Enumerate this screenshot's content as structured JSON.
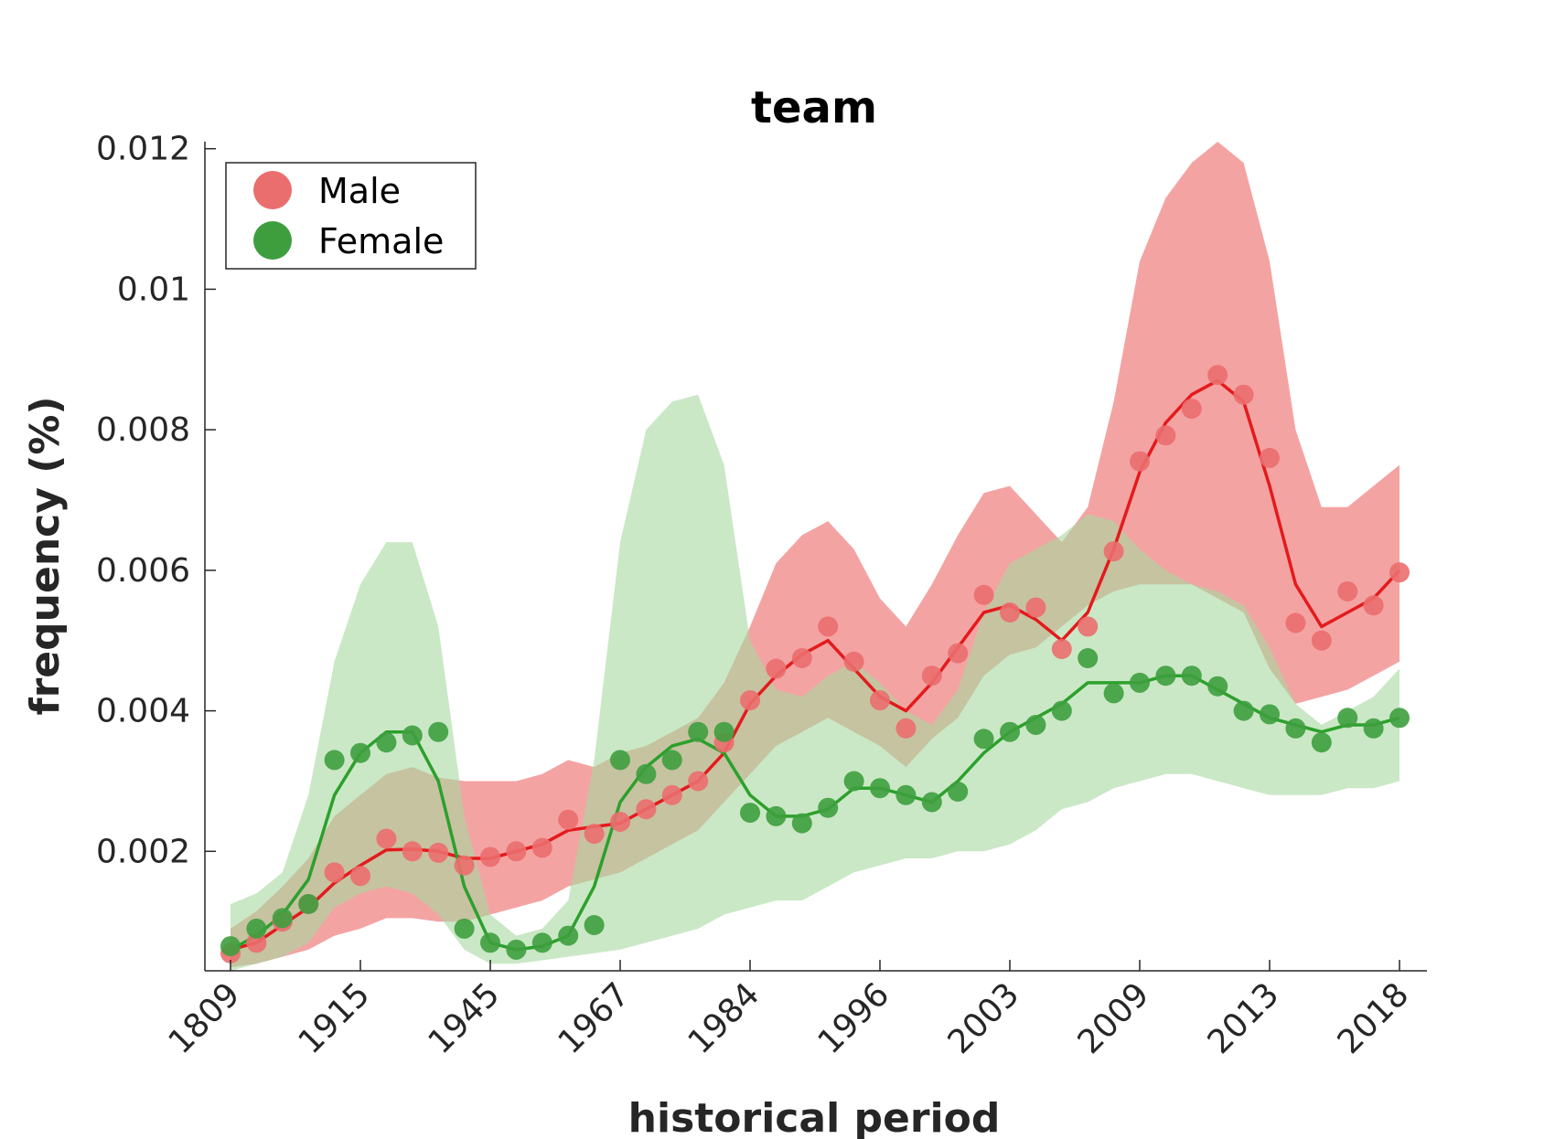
{
  "chart_data": {
    "type": "line",
    "title": "team",
    "xlabel": "historical period",
    "ylabel": "frequency (%)",
    "x_tick_labels": [
      "1809",
      "1915",
      "1945",
      "1967",
      "1984",
      "1996",
      "2003",
      "2009",
      "2013",
      "2018"
    ],
    "y_ticks": [
      0.002,
      0.004,
      0.006,
      0.008,
      0.01,
      0.012
    ],
    "y_tick_labels": [
      "0.002",
      "0.004",
      "0.006",
      "0.008",
      "0.01",
      "0.012"
    ],
    "ylim": [
      0.0003,
      0.0121
    ],
    "grid": false,
    "legend_position": "top-left",
    "series": [
      {
        "name": "Male",
        "color": "#e41a1c",
        "marker_color": "#eb6e6e",
        "band_color": "#f4a3a3",
        "points": [
          0.00055,
          0.0007,
          0.001,
          0.00125,
          0.0017,
          0.00165,
          0.00218,
          0.002,
          0.00198,
          0.0018,
          0.00192,
          0.002,
          0.00205,
          0.00245,
          0.00225,
          0.00242,
          0.0026,
          0.0028,
          0.003,
          0.00355,
          0.00415,
          0.0046,
          0.00475,
          0.0052,
          0.0047,
          0.00415,
          0.00375,
          0.0045,
          0.00482,
          0.00565,
          0.0054,
          0.00547,
          0.00488,
          0.0052,
          0.00627,
          0.00755,
          0.00792,
          0.0083,
          0.00878,
          0.0085,
          0.0076,
          0.00525,
          0.005,
          0.0057,
          0.0055,
          0.00597
        ],
        "trend": [
          0.0006,
          0.0007,
          0.00095,
          0.0012,
          0.00155,
          0.0018,
          0.00202,
          0.00203,
          0.002,
          0.0019,
          0.0019,
          0.002,
          0.0021,
          0.0023,
          0.00235,
          0.0024,
          0.0026,
          0.0028,
          0.003,
          0.0034,
          0.0041,
          0.0045,
          0.0048,
          0.005,
          0.0046,
          0.0042,
          0.004,
          0.0044,
          0.0049,
          0.0054,
          0.0055,
          0.0053,
          0.005,
          0.0054,
          0.0063,
          0.0074,
          0.0081,
          0.0085,
          0.0087,
          0.0084,
          0.0072,
          0.0058,
          0.0052,
          0.0054,
          0.0056,
          0.006
        ],
        "band_lower": [
          0.00035,
          0.0004,
          0.0005,
          0.0006,
          0.0008,
          0.0009,
          0.00105,
          0.00105,
          0.001,
          0.001,
          0.0011,
          0.0012,
          0.0013,
          0.0015,
          0.0016,
          0.0017,
          0.0019,
          0.0021,
          0.0023,
          0.0027,
          0.0031,
          0.0035,
          0.0037,
          0.0039,
          0.0037,
          0.0035,
          0.0032,
          0.0036,
          0.0039,
          0.0045,
          0.0048,
          0.0049,
          0.0052,
          0.0055,
          0.0057,
          0.0058,
          0.0058,
          0.0058,
          0.0056,
          0.0054,
          0.0046,
          0.0041,
          0.0042,
          0.0043,
          0.0045,
          0.0047
        ],
        "band_upper": [
          0.0009,
          0.00115,
          0.0015,
          0.0019,
          0.0025,
          0.0028,
          0.0031,
          0.0032,
          0.00305,
          0.003,
          0.003,
          0.003,
          0.0031,
          0.0033,
          0.0032,
          0.0034,
          0.0035,
          0.0037,
          0.0039,
          0.0044,
          0.0052,
          0.0061,
          0.0065,
          0.0067,
          0.0063,
          0.0056,
          0.0052,
          0.0058,
          0.0065,
          0.0071,
          0.0072,
          0.0068,
          0.0064,
          0.0069,
          0.0084,
          0.0104,
          0.0113,
          0.0118,
          0.0121,
          0.0118,
          0.0104,
          0.008,
          0.0069,
          0.0069,
          0.0072,
          0.0075
        ]
      },
      {
        "name": "Female",
        "color": "#2ca02c",
        "marker_color": "#3e9e3e",
        "band_color": "#a6d8a0",
        "points": [
          0.00065,
          0.0009,
          0.00105,
          0.00125,
          0.0033,
          0.0034,
          0.00355,
          0.00365,
          0.0037,
          0.0009,
          0.0007,
          0.0006,
          0.0007,
          0.0008,
          0.00095,
          0.0033,
          0.0031,
          0.0033,
          0.0037,
          0.0037,
          0.00255,
          0.0025,
          0.0024,
          0.00262,
          0.003,
          0.0029,
          0.0028,
          0.0027,
          0.00285,
          0.0036,
          0.0037,
          0.0038,
          0.004,
          0.00475,
          0.00425,
          0.0044,
          0.0045,
          0.0045,
          0.00435,
          0.004,
          0.00395,
          0.00375,
          0.00355,
          0.0039,
          0.00375,
          0.0039
        ],
        "trend": [
          0.0006,
          0.0008,
          0.0011,
          0.0016,
          0.0028,
          0.0034,
          0.0037,
          0.0037,
          0.003,
          0.0015,
          0.0007,
          0.0006,
          0.00065,
          0.0008,
          0.0015,
          0.0027,
          0.0032,
          0.0035,
          0.0036,
          0.0034,
          0.0028,
          0.0025,
          0.0025,
          0.0026,
          0.0029,
          0.0029,
          0.0028,
          0.0027,
          0.003,
          0.0034,
          0.0037,
          0.0039,
          0.0041,
          0.0044,
          0.0044,
          0.0044,
          0.0045,
          0.0045,
          0.0043,
          0.0041,
          0.0039,
          0.0038,
          0.0037,
          0.0038,
          0.0038,
          0.0039
        ],
        "band_lower": [
          0.0003,
          0.0004,
          0.0005,
          0.0007,
          0.0012,
          0.0014,
          0.0015,
          0.0014,
          0.0011,
          0.0006,
          0.0004,
          0.0004,
          0.00045,
          0.0005,
          0.00055,
          0.0006,
          0.0007,
          0.0008,
          0.0009,
          0.0011,
          0.0012,
          0.0013,
          0.0013,
          0.0015,
          0.0017,
          0.0018,
          0.0019,
          0.0019,
          0.002,
          0.002,
          0.0021,
          0.0023,
          0.0026,
          0.0027,
          0.0029,
          0.003,
          0.0031,
          0.0031,
          0.003,
          0.0029,
          0.0028,
          0.0028,
          0.0028,
          0.0029,
          0.0029,
          0.003
        ],
        "band_upper": [
          0.00125,
          0.0014,
          0.0017,
          0.0028,
          0.0047,
          0.0058,
          0.0064,
          0.0064,
          0.0052,
          0.0025,
          0.0011,
          0.0008,
          0.0009,
          0.0013,
          0.0033,
          0.0064,
          0.008,
          0.0084,
          0.0085,
          0.0075,
          0.005,
          0.0043,
          0.0042,
          0.0045,
          0.0047,
          0.0044,
          0.004,
          0.0038,
          0.0043,
          0.0054,
          0.0061,
          0.0063,
          0.0065,
          0.0068,
          0.0067,
          0.0063,
          0.006,
          0.0058,
          0.0057,
          0.0055,
          0.0049,
          0.0041,
          0.0038,
          0.004,
          0.0042,
          0.0046
        ]
      }
    ]
  }
}
